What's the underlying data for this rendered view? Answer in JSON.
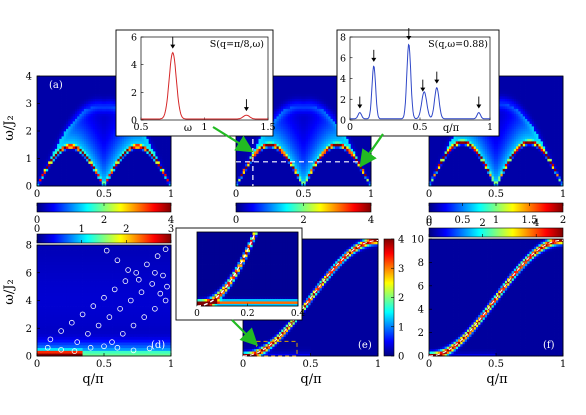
{
  "chart_data": [
    {
      "panel_label": "(a)",
      "type": "heatmap",
      "ylabel": "ω/J₂",
      "x_ticks": [
        "0",
        "0.5",
        "1"
      ],
      "y_ticks": [
        "0",
        "1",
        "2",
        "3",
        "4"
      ],
      "xlim": [
        0,
        1
      ],
      "ylim": [
        0,
        4
      ],
      "colorbar": {
        "ticks": [
          "0",
          "2",
          "4"
        ],
        "range": [
          0,
          4
        ],
        "placement": "below"
      },
      "spectrum": {
        "kind": "double-dome",
        "branch_x": [
          0,
          0.5,
          1
        ],
        "peak_y": 1.45,
        "height_y": 1.45,
        "continuum_top_y": 2.9
      }
    },
    {
      "panel_label": "(b)",
      "type": "heatmap",
      "x_ticks": [
        "0",
        "0.5",
        "1"
      ],
      "y_ticks": [
        "0",
        "1",
        "2",
        "3",
        "4"
      ],
      "xlim": [
        0,
        1
      ],
      "ylim": [
        0,
        4
      ],
      "colorbar": {
        "ticks": [
          "0",
          "2",
          "4"
        ],
        "range": [
          0,
          4
        ],
        "placement": "below"
      },
      "spectrum": {
        "kind": "double-dome",
        "branch_x": [
          0,
          0.5,
          1
        ],
        "peak_y": 1.5,
        "height_y": 1.5,
        "continuum_top_y": 2.9
      },
      "cuts": {
        "vertical_q": 0.125,
        "horizontal_omega": 0.88
      }
    },
    {
      "panel_label": "(c)",
      "type": "heatmap",
      "x_ticks": [
        "0",
        "0.5",
        "1"
      ],
      "y_ticks": [
        "0",
        "1",
        "2",
        "3",
        "4"
      ],
      "xlim": [
        0,
        1
      ],
      "ylim": [
        0,
        4
      ],
      "colorbar": {
        "ticks": [
          "0",
          "0.5",
          "1",
          "1.5",
          "2"
        ],
        "range": [
          0,
          2
        ],
        "placement": "below"
      },
      "spectrum": {
        "kind": "double-dome",
        "branch_x": [
          0,
          0.5,
          1
        ],
        "peak_y": 1.6,
        "height_y": 1.6,
        "continuum_top_y": 3.0
      }
    },
    {
      "panel_label": "(d)",
      "type": "heatmap",
      "xlabel": "q/π",
      "ylabel": "ω/J₂",
      "x_ticks": [
        "0",
        "0.5",
        "1"
      ],
      "y_ticks": [
        "0",
        "2",
        "4",
        "6",
        "8"
      ],
      "xlim": [
        0,
        1
      ],
      "ylim": [
        0,
        8
      ],
      "colorbar": {
        "ticks": [
          "0",
          "1",
          "2",
          "3"
        ],
        "range": [
          0,
          3
        ],
        "placement": "above"
      },
      "circle_points": [
        [
          0.1,
          1.2
        ],
        [
          0.18,
          1.8
        ],
        [
          0.26,
          2.4
        ],
        [
          0.34,
          3.0
        ],
        [
          0.42,
          3.6
        ],
        [
          0.5,
          4.2
        ],
        [
          0.58,
          4.8
        ],
        [
          0.66,
          5.4
        ],
        [
          0.74,
          6.0
        ],
        [
          0.82,
          6.6
        ],
        [
          0.9,
          7.2
        ],
        [
          0.96,
          7.7
        ],
        [
          0.3,
          1.0
        ],
        [
          0.38,
          1.6
        ],
        [
          0.46,
          2.2
        ],
        [
          0.54,
          2.8
        ],
        [
          0.62,
          3.4
        ],
        [
          0.7,
          4.0
        ],
        [
          0.78,
          4.6
        ],
        [
          0.86,
          5.2
        ],
        [
          0.94,
          5.8
        ],
        [
          0.56,
          1.0
        ],
        [
          0.64,
          1.6
        ],
        [
          0.72,
          2.2
        ],
        [
          0.8,
          2.8
        ],
        [
          0.88,
          3.4
        ],
        [
          0.96,
          4.0
        ],
        [
          0.52,
          7.6
        ],
        [
          0.6,
          6.9
        ],
        [
          0.68,
          6.2
        ],
        [
          0.76,
          5.5
        ],
        [
          0.88,
          6.0
        ],
        [
          0.92,
          4.5
        ],
        [
          0.97,
          5.0
        ],
        [
          0.08,
          0.6
        ],
        [
          0.18,
          0.45
        ],
        [
          0.28,
          0.35
        ],
        [
          0.4,
          0.6
        ],
        [
          0.5,
          0.7
        ],
        [
          0.6,
          0.6
        ],
        [
          0.72,
          0.4
        ],
        [
          0.84,
          0.55
        ]
      ]
    },
    {
      "panel_label": "(e)",
      "type": "heatmap",
      "xlabel": "q/π",
      "x_ticks": [
        "0",
        "0.5",
        "1"
      ],
      "y_ticks": [
        "0",
        "2",
        "4",
        "6",
        "8"
      ],
      "xlim": [
        0,
        1
      ],
      "ylim": [
        0,
        8
      ],
      "colorbar": {
        "ticks": [
          "0",
          "1",
          "2",
          "3",
          "4"
        ],
        "range": [
          0,
          4
        ],
        "placement": "right"
      },
      "dispersion_max_y": 7.9,
      "highlight_box": {
        "x": [
          0.1,
          0.4
        ],
        "y": [
          0,
          1
        ]
      }
    },
    {
      "panel_label": "(f)",
      "type": "heatmap",
      "xlabel": "q/π",
      "x_ticks": [
        "0",
        "0.5",
        "1"
      ],
      "y_ticks": [
        "0",
        "2",
        "4",
        "6",
        "8",
        "10"
      ],
      "xlim": [
        0,
        1
      ],
      "ylim": [
        0,
        10
      ],
      "colorbar": {
        "ticks": [
          "0",
          "2",
          "4"
        ],
        "range": [
          0,
          5
        ],
        "placement": "above"
      },
      "dispersion_max_y": 9.9
    }
  ],
  "inset_sq_pi8": {
    "label": "S(q=π/8,ω)",
    "xlabel": "ω",
    "x_ticks": [
      "0.5",
      "1",
      "1.5"
    ],
    "y_ticks": [
      "0",
      "2",
      "4",
      "6"
    ],
    "xlim": [
      0.5,
      1.5
    ],
    "ylim": [
      0,
      6
    ],
    "color": "#d62728",
    "peaks": [
      {
        "x": 0.75,
        "y": 4.8,
        "w": 0.028
      },
      {
        "x": 1.33,
        "y": 0.28,
        "w": 0.025
      }
    ],
    "background": 0.07,
    "arrows_x": [
      0.75,
      1.33
    ]
  },
  "inset_sqw": {
    "label": "S(q,ω=0.88)",
    "xlabel": "q/π",
    "x_ticks": [
      "0",
      "0.5",
      "1"
    ],
    "y_ticks": [
      "0",
      "2",
      "4",
      "6",
      "8"
    ],
    "xlim": [
      0,
      1
    ],
    "ylim": [
      0,
      8
    ],
    "color": "#3048c8",
    "peaks": [
      {
        "x": 0.07,
        "y": 0.6,
        "w": 0.012
      },
      {
        "x": 0.17,
        "y": 5.1,
        "w": 0.013
      },
      {
        "x": 0.42,
        "y": 7.2,
        "w": 0.014
      },
      {
        "x": 0.53,
        "y": 2.6,
        "w": 0.018
      },
      {
        "x": 0.62,
        "y": 3.0,
        "w": 0.016
      },
      {
        "x": 0.92,
        "y": 0.6,
        "w": 0.012
      }
    ],
    "background": 0.12,
    "arrows_x": [
      0.07,
      0.17,
      0.42,
      0.52,
      0.62,
      0.92
    ]
  },
  "inset_zoom": {
    "x_ticks": [
      "0",
      "0.2",
      "0.4"
    ],
    "xlim": [
      0,
      0.4
    ],
    "ylim": [
      0,
      1
    ]
  },
  "jet_colors": [
    "#00007f",
    "#0000ff",
    "#007fff",
    "#00ffff",
    "#7fff7f",
    "#ffff00",
    "#ff7f00",
    "#ff0000",
    "#7f0000"
  ],
  "accent_colors": {
    "arrow_green": "#22bb22",
    "guide_dash": "#ffffff",
    "box_dash": "#d8a000",
    "circle_marker": "#ffffff"
  }
}
